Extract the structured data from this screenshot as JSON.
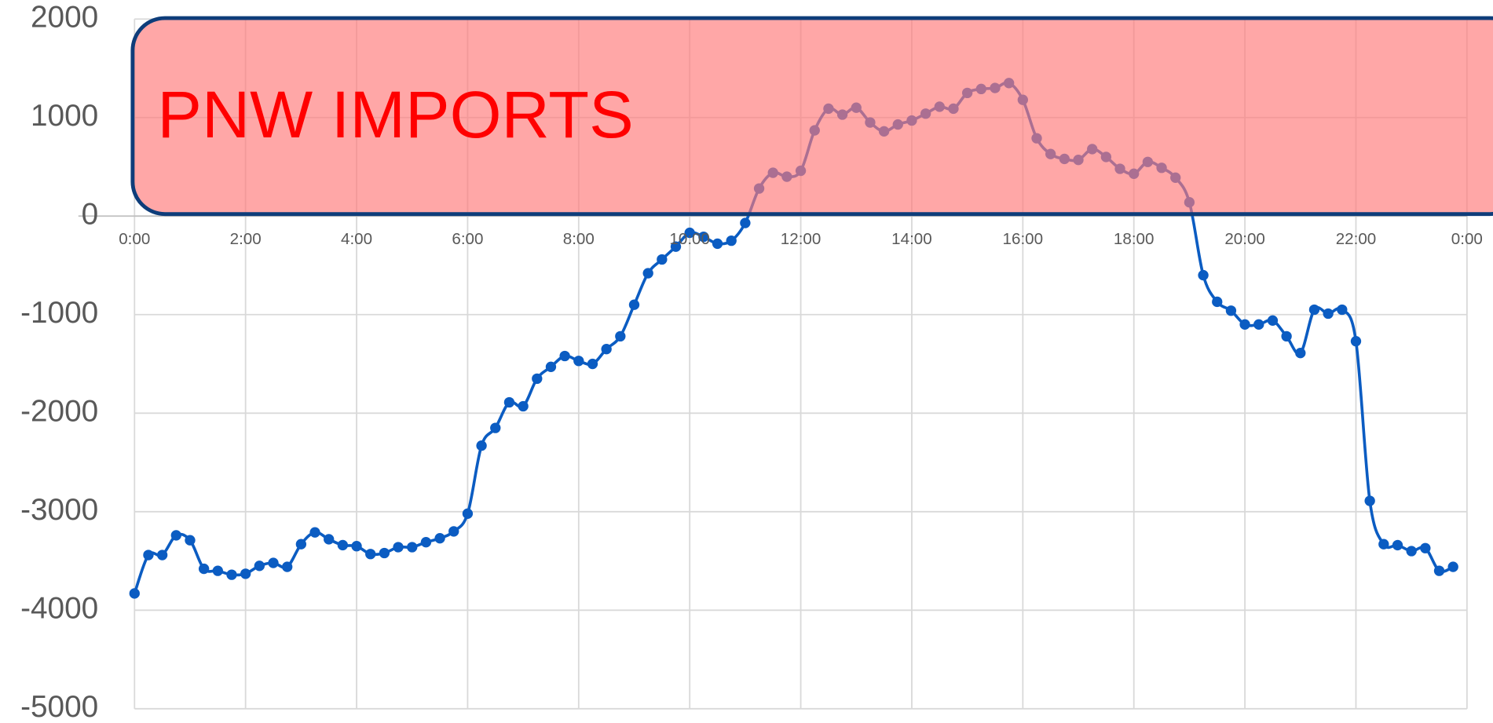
{
  "chart_data": {
    "type": "line",
    "annotation": "PNW IMPORTS",
    "xlim": [
      0,
      24
    ],
    "xticks": [
      {
        "value": 0,
        "label": "0:00"
      },
      {
        "value": 2,
        "label": "2:00"
      },
      {
        "value": 4,
        "label": "4:00"
      },
      {
        "value": 6,
        "label": "6:00"
      },
      {
        "value": 8,
        "label": "8:00"
      },
      {
        "value": 10,
        "label": "10:00"
      },
      {
        "value": 12,
        "label": "12:00"
      },
      {
        "value": 14,
        "label": "14:00"
      },
      {
        "value": 16,
        "label": "16:00"
      },
      {
        "value": 18,
        "label": "18:00"
      },
      {
        "value": 20,
        "label": "20:00"
      },
      {
        "value": 22,
        "label": "22:00"
      },
      {
        "value": 24,
        "label": "0:00"
      }
    ],
    "ylim": [
      -5000,
      2000
    ],
    "yticks": [
      -5000,
      -4000,
      -3000,
      -2000,
      -1000,
      0,
      1000,
      2000
    ],
    "grid": true,
    "color": "#0b5cc2",
    "x": [
      0,
      0.25,
      0.5,
      0.75,
      1,
      1.25,
      1.5,
      1.75,
      2,
      2.25,
      2.5,
      2.75,
      3,
      3.25,
      3.5,
      3.75,
      4,
      4.25,
      4.5,
      4.75,
      5,
      5.25,
      5.5,
      5.75,
      6,
      6.25,
      6.5,
      6.75,
      7,
      7.25,
      7.5,
      7.75,
      8,
      8.25,
      8.5,
      8.75,
      9,
      9.25,
      9.5,
      9.75,
      10,
      10.25,
      10.5,
      10.75,
      11,
      11.25,
      11.5,
      11.75,
      12,
      12.25,
      12.5,
      12.75,
      13,
      13.25,
      13.5,
      13.75,
      14,
      14.25,
      14.5,
      14.75,
      15,
      15.25,
      15.5,
      15.75,
      16,
      16.25,
      16.5,
      16.75,
      17,
      17.25,
      17.5,
      17.75,
      18,
      18.25,
      18.5,
      18.75,
      19,
      19.25,
      19.5,
      19.75,
      20,
      20.25,
      20.5,
      20.75,
      21,
      21.25,
      21.5,
      21.75,
      22,
      22.25,
      22.5,
      22.75,
      23,
      23.25,
      23.5,
      23.75
    ],
    "values": [
      -3830,
      -3440,
      -3440,
      -3240,
      -3290,
      -3580,
      -3600,
      -3640,
      -3630,
      -3550,
      -3520,
      -3560,
      -3330,
      -3210,
      -3280,
      -3340,
      -3350,
      -3430,
      -3420,
      -3360,
      -3360,
      -3310,
      -3270,
      -3200,
      -3020,
      -2330,
      -2150,
      -1890,
      -1930,
      -1650,
      -1530,
      -1420,
      -1470,
      -1500,
      -1350,
      -1220,
      -900,
      -580,
      -440,
      -310,
      -170,
      -210,
      -280,
      -250,
      -70,
      280,
      440,
      400,
      460,
      870,
      1090,
      1030,
      1100,
      950,
      860,
      930,
      970,
      1040,
      1110,
      1090,
      1250,
      1290,
      1300,
      1350,
      1180,
      790,
      630,
      580,
      570,
      680,
      600,
      480,
      430,
      550,
      490,
      390,
      140,
      -600,
      -870,
      -960,
      -1100,
      -1100,
      -1060,
      -1220,
      -1390,
      -950,
      -990,
      -950,
      -1270,
      -2890,
      -3330,
      -3340,
      -3400,
      -3370,
      -3600,
      -3560
    ]
  }
}
